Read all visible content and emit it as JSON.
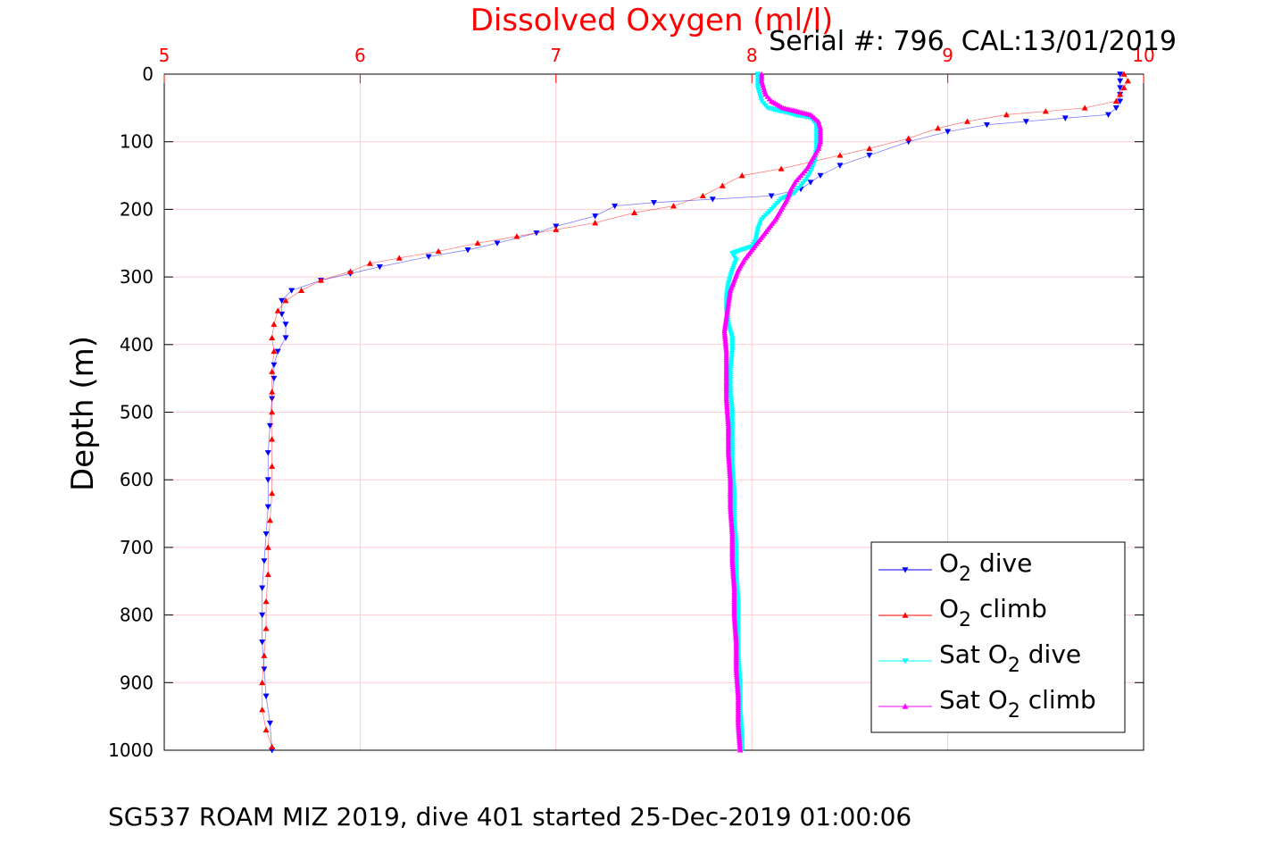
{
  "chart_data": {
    "type": "scatter",
    "title": "Dissolved Oxygen (ml/l)",
    "subtitle": "Serial #: 796  CAL:13/01/2019",
    "xlabel": "Dissolved Oxygen (ml/l)",
    "ylabel": "Depth (m)",
    "xlim": [
      5,
      10
    ],
    "ylim": [
      0,
      1000
    ],
    "y_reversed": true,
    "x_axis_location": "top",
    "xticks": [
      5,
      6,
      7,
      8,
      9,
      10
    ],
    "yticks": [
      0,
      100,
      200,
      300,
      400,
      500,
      600,
      700,
      800,
      900,
      1000
    ],
    "grid": true,
    "legend_position": "bottom-right",
    "colors": {
      "title": "#ff0000",
      "x_ticks": "#ff0000",
      "grid": "#ffccd1"
    },
    "series": [
      {
        "name": "O2 dive",
        "legend_main": "O",
        "legend_sub": "2",
        "legend_rest": " dive",
        "color": "#0000ff",
        "marker": "triangle-down",
        "points": [
          [
            9.88,
            0
          ],
          [
            9.88,
            10
          ],
          [
            9.88,
            20
          ],
          [
            9.88,
            30
          ],
          [
            9.88,
            40
          ],
          [
            9.86,
            50
          ],
          [
            9.82,
            60
          ],
          [
            9.6,
            65
          ],
          [
            9.4,
            70
          ],
          [
            9.2,
            75
          ],
          [
            9.0,
            85
          ],
          [
            8.8,
            100
          ],
          [
            8.6,
            120
          ],
          [
            8.45,
            135
          ],
          [
            8.35,
            150
          ],
          [
            8.3,
            160
          ],
          [
            8.25,
            170
          ],
          [
            8.1,
            180
          ],
          [
            7.8,
            185
          ],
          [
            7.5,
            190
          ],
          [
            7.3,
            195
          ],
          [
            7.2,
            210
          ],
          [
            7.0,
            225
          ],
          [
            6.9,
            235
          ],
          [
            6.7,
            250
          ],
          [
            6.55,
            260
          ],
          [
            6.35,
            270
          ],
          [
            6.1,
            285
          ],
          [
            5.95,
            295
          ],
          [
            5.8,
            305
          ],
          [
            5.65,
            320
          ],
          [
            5.6,
            335
          ],
          [
            5.6,
            355
          ],
          [
            5.62,
            370
          ],
          [
            5.62,
            390
          ],
          [
            5.58,
            410
          ],
          [
            5.56,
            430
          ],
          [
            5.56,
            450
          ],
          [
            5.55,
            480
          ],
          [
            5.54,
            520
          ],
          [
            5.53,
            560
          ],
          [
            5.53,
            600
          ],
          [
            5.53,
            640
          ],
          [
            5.52,
            680
          ],
          [
            5.51,
            720
          ],
          [
            5.5,
            760
          ],
          [
            5.5,
            800
          ],
          [
            5.5,
            840
          ],
          [
            5.51,
            880
          ],
          [
            5.52,
            920
          ],
          [
            5.54,
            960
          ],
          [
            5.55,
            1000
          ]
        ]
      },
      {
        "name": "O2 climb",
        "legend_main": "O",
        "legend_sub": "2",
        "legend_rest": " climb",
        "color": "#ff0000",
        "marker": "triangle-up",
        "points": [
          [
            9.9,
            0
          ],
          [
            9.92,
            10
          ],
          [
            9.9,
            20
          ],
          [
            9.88,
            30
          ],
          [
            9.86,
            40
          ],
          [
            9.7,
            50
          ],
          [
            9.5,
            55
          ],
          [
            9.3,
            60
          ],
          [
            9.1,
            70
          ],
          [
            8.95,
            80
          ],
          [
            8.8,
            95
          ],
          [
            8.6,
            110
          ],
          [
            8.45,
            120
          ],
          [
            8.3,
            130
          ],
          [
            8.15,
            140
          ],
          [
            7.95,
            150
          ],
          [
            7.85,
            165
          ],
          [
            7.75,
            180
          ],
          [
            7.6,
            195
          ],
          [
            7.4,
            205
          ],
          [
            7.2,
            220
          ],
          [
            7.0,
            230
          ],
          [
            6.8,
            240
          ],
          [
            6.6,
            250
          ],
          [
            6.4,
            262
          ],
          [
            6.2,
            272
          ],
          [
            6.05,
            280
          ],
          [
            5.95,
            292
          ],
          [
            5.8,
            305
          ],
          [
            5.7,
            320
          ],
          [
            5.62,
            335
          ],
          [
            5.58,
            350
          ],
          [
            5.56,
            370
          ],
          [
            5.55,
            390
          ],
          [
            5.56,
            410
          ],
          [
            5.55,
            440
          ],
          [
            5.55,
            470
          ],
          [
            5.55,
            500
          ],
          [
            5.55,
            540
          ],
          [
            5.55,
            580
          ],
          [
            5.55,
            620
          ],
          [
            5.54,
            660
          ],
          [
            5.53,
            700
          ],
          [
            5.53,
            740
          ],
          [
            5.52,
            780
          ],
          [
            5.52,
            820
          ],
          [
            5.51,
            860
          ],
          [
            5.5,
            900
          ],
          [
            5.5,
            940
          ],
          [
            5.52,
            970
          ],
          [
            5.55,
            995
          ]
        ]
      },
      {
        "name": "Sat O2 dive",
        "legend_main": "Sat O",
        "legend_sub": "2",
        "legend_rest": " dive",
        "color": "#00ffff",
        "marker": "triangle-down",
        "points": [
          [
            8.03,
            0
          ],
          [
            8.03,
            10
          ],
          [
            8.03,
            20
          ],
          [
            8.04,
            30
          ],
          [
            8.05,
            40
          ],
          [
            8.08,
            50
          ],
          [
            8.15,
            55
          ],
          [
            8.22,
            60
          ],
          [
            8.3,
            65
          ],
          [
            8.33,
            75
          ],
          [
            8.33,
            90
          ],
          [
            8.33,
            110
          ],
          [
            8.32,
            130
          ],
          [
            8.3,
            145
          ],
          [
            8.28,
            155
          ],
          [
            8.25,
            165
          ],
          [
            8.22,
            175
          ],
          [
            8.15,
            185
          ],
          [
            8.1,
            200
          ],
          [
            8.05,
            215
          ],
          [
            8.03,
            230
          ],
          [
            8.02,
            245
          ],
          [
            8.0,
            255
          ],
          [
            7.9,
            265
          ],
          [
            7.92,
            275
          ],
          [
            7.9,
            290
          ],
          [
            7.88,
            310
          ],
          [
            7.87,
            330
          ],
          [
            7.87,
            350
          ],
          [
            7.88,
            370
          ],
          [
            7.9,
            390
          ],
          [
            7.9,
            410
          ],
          [
            7.89,
            440
          ],
          [
            7.89,
            470
          ],
          [
            7.9,
            500
          ],
          [
            7.9,
            540
          ],
          [
            7.9,
            580
          ],
          [
            7.91,
            620
          ],
          [
            7.91,
            660
          ],
          [
            7.92,
            700
          ],
          [
            7.92,
            740
          ],
          [
            7.93,
            780
          ],
          [
            7.93,
            820
          ],
          [
            7.93,
            860
          ],
          [
            7.94,
            900
          ],
          [
            7.94,
            940
          ],
          [
            7.95,
            980
          ],
          [
            7.95,
            1000
          ]
        ]
      },
      {
        "name": "Sat O2 climb",
        "legend_main": "Sat O",
        "legend_sub": "2",
        "legend_rest": " climb",
        "color": "#ff00ff",
        "marker": "triangle-up",
        "points": [
          [
            8.05,
            0
          ],
          [
            8.05,
            10
          ],
          [
            8.06,
            20
          ],
          [
            8.07,
            30
          ],
          [
            8.1,
            40
          ],
          [
            8.16,
            50
          ],
          [
            8.23,
            55
          ],
          [
            8.3,
            60
          ],
          [
            8.34,
            70
          ],
          [
            8.35,
            80
          ],
          [
            8.35,
            90
          ],
          [
            8.35,
            100
          ],
          [
            8.34,
            110
          ],
          [
            8.32,
            120
          ],
          [
            8.3,
            130
          ],
          [
            8.28,
            140
          ],
          [
            8.25,
            150
          ],
          [
            8.22,
            160
          ],
          [
            8.2,
            170
          ],
          [
            8.18,
            185
          ],
          [
            8.15,
            200
          ],
          [
            8.12,
            215
          ],
          [
            8.08,
            230
          ],
          [
            8.04,
            245
          ],
          [
            8.0,
            260
          ],
          [
            7.96,
            275
          ],
          [
            7.93,
            290
          ],
          [
            7.91,
            305
          ],
          [
            7.89,
            320
          ],
          [
            7.88,
            340
          ],
          [
            7.87,
            360
          ],
          [
            7.86,
            380
          ],
          [
            7.87,
            410
          ],
          [
            7.87,
            440
          ],
          [
            7.87,
            480
          ],
          [
            7.88,
            520
          ],
          [
            7.88,
            560
          ],
          [
            7.89,
            600
          ],
          [
            7.89,
            640
          ],
          [
            7.9,
            680
          ],
          [
            7.9,
            720
          ],
          [
            7.91,
            760
          ],
          [
            7.91,
            800
          ],
          [
            7.92,
            840
          ],
          [
            7.92,
            880
          ],
          [
            7.93,
            920
          ],
          [
            7.93,
            960
          ],
          [
            7.94,
            1000
          ]
        ]
      }
    ]
  },
  "footer": "SG537 ROAM MIZ 2019, dive 401 started 25-Dec-2019 01:00:06"
}
